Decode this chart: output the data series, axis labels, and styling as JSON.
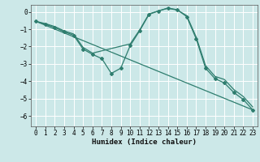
{
  "bg_color": "#cce8e8",
  "grid_color": "#ffffff",
  "line_color": "#2e7d6e",
  "xlabel": "Humidex (Indice chaleur)",
  "xlim": [
    -0.5,
    23.5
  ],
  "ylim": [
    -6.6,
    0.4
  ],
  "yticks": [
    0,
    -1,
    -2,
    -3,
    -4,
    -5,
    -6
  ],
  "xticks": [
    0,
    1,
    2,
    3,
    4,
    5,
    6,
    7,
    8,
    9,
    10,
    11,
    12,
    13,
    14,
    15,
    16,
    17,
    18,
    19,
    20,
    21,
    22,
    23
  ],
  "series0_x": [
    0,
    1,
    2,
    3,
    4,
    5,
    6,
    7,
    8,
    9,
    10,
    11,
    12,
    13,
    14,
    15,
    16,
    17,
    18,
    19,
    20,
    21,
    22,
    23
  ],
  "series0_y": [
    -0.55,
    -0.72,
    -0.9,
    -1.15,
    -1.35,
    -2.15,
    -2.45,
    -2.7,
    -3.55,
    -3.25,
    -1.95,
    -1.1,
    -0.15,
    0.05,
    0.22,
    0.12,
    -0.28,
    -1.55,
    -3.25,
    -3.85,
    -4.1,
    -4.65,
    -5.05,
    -5.65
  ],
  "series1_x": [
    0,
    23
  ],
  "series1_y": [
    -0.55,
    -5.65
  ],
  "series2_x": [
    0,
    1,
    2,
    3,
    4,
    5,
    6,
    10,
    11,
    12,
    13,
    14,
    15,
    16,
    17,
    18,
    19,
    20,
    21,
    22,
    23
  ],
  "series2_y": [
    -0.55,
    -0.68,
    -0.85,
    -1.1,
    -1.28,
    -2.05,
    -2.38,
    -1.85,
    -1.05,
    -0.12,
    0.05,
    0.2,
    0.1,
    -0.22,
    -1.45,
    -3.1,
    -3.72,
    -3.9,
    -4.48,
    -4.88,
    -5.48
  ]
}
